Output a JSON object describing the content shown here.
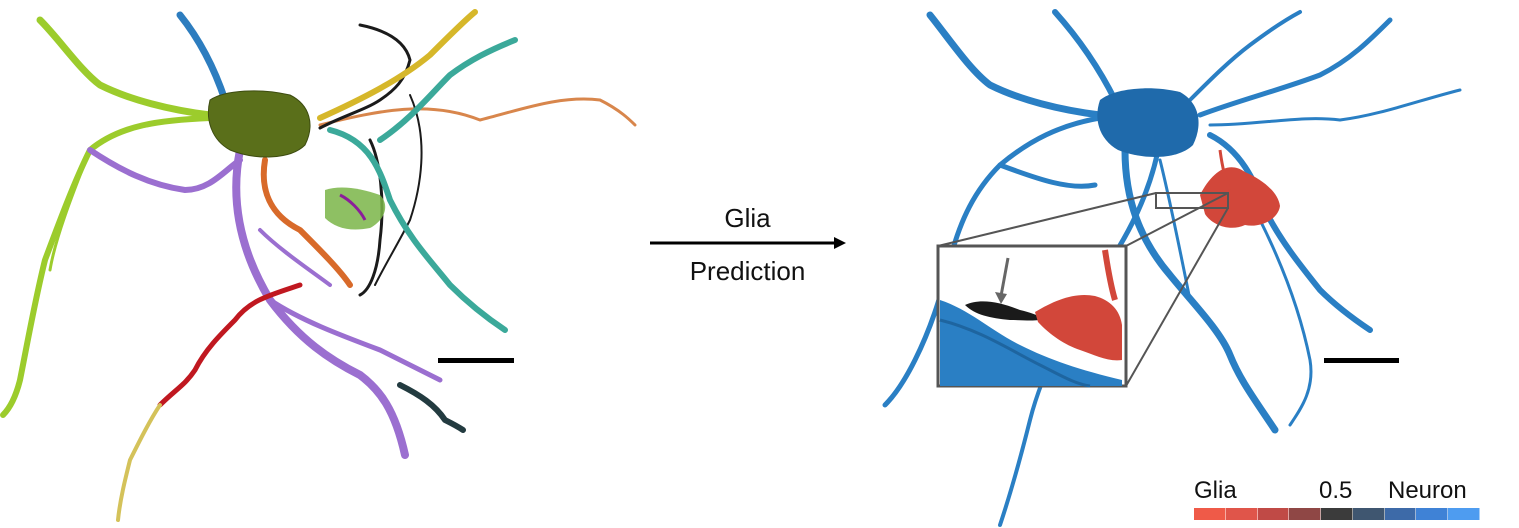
{
  "figure": {
    "arrow_label_top": "Glia",
    "arrow_label_bottom": "Prediction",
    "legend": {
      "left_label": "Glia",
      "mid_label": "0.5",
      "right_label": "Neuron",
      "colors": [
        "#ef5a48",
        "#e0554a",
        "#c04a46",
        "#8f4745",
        "#3b3b3b",
        "#3f5670",
        "#3d6aa8",
        "#3f82d6",
        "#4e9cf0"
      ]
    },
    "colors": {
      "neuron_blue": "#2a7fc4",
      "glia_red": "#d2473a",
      "soma_green": "#556b1e"
    }
  }
}
